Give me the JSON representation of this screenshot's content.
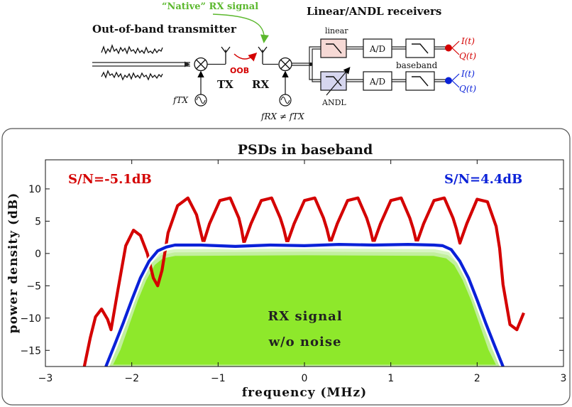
{
  "diagram": {
    "native_label": "“Native” RX signal",
    "title_receivers": "Linear/ANDL receivers",
    "title_transmitter": "Out-of-band transmitter",
    "oob_label": "OOB",
    "tx_label": "TX",
    "rx_label": "RX",
    "ftx_label": "fTX",
    "frx_neq_label": "fRX ≠ fTX",
    "linear_label": "linear",
    "andl_label": "ANDL",
    "ad_label_top": "A/D",
    "ad_label_bottom": "A/D",
    "baseband_label": "baseband",
    "i_top": "I(t)",
    "q_top": "Q(t)",
    "i_bottom": "I(t)",
    "q_bottom": "Q(t)",
    "colors": {
      "red": "#d40000",
      "blue": "#0a21d8",
      "green_label": "#5cb82e",
      "linear_box": "#f6d9d5",
      "andl_box": "#d6d6ef"
    }
  },
  "chart_data": {
    "type": "line",
    "title": "PSDs in baseband",
    "xlabel": "frequency (MHz)",
    "ylabel": "power density (dB)",
    "xlim": [
      -3,
      3
    ],
    "ylim": [
      -17.5,
      14.5
    ],
    "xticks": [
      -3,
      -2,
      -1,
      0,
      1,
      2,
      3
    ],
    "yticks": [
      10,
      5,
      0,
      -5,
      -10,
      -15
    ],
    "grid": false,
    "annotations": {
      "snr_linear": "S/N=-5.1dB",
      "snr_andl": "S/N=4.4dB",
      "rx_signal_line1": "RX signal",
      "rx_signal_line2": "w/o noise"
    },
    "series": [
      {
        "color": "#d40000",
        "x": [
          -2.55,
          -2.48,
          -2.42,
          -2.35,
          -2.28,
          -2.24,
          -2.16,
          -2.07,
          -1.98,
          -1.9,
          -1.82,
          -1.75,
          -1.7,
          -1.65,
          -1.58,
          -1.47,
          -1.35,
          -1.25,
          -1.21,
          -1.17,
          -1.1,
          -0.98,
          -0.86,
          -0.76,
          -0.73,
          -0.7,
          -0.62,
          -0.5,
          -0.38,
          -0.28,
          -0.24,
          -0.2,
          -0.12,
          0.0,
          0.12,
          0.22,
          0.26,
          0.3,
          0.38,
          0.5,
          0.62,
          0.72,
          0.76,
          0.8,
          0.88,
          1.0,
          1.12,
          1.22,
          1.26,
          1.3,
          1.38,
          1.5,
          1.62,
          1.72,
          1.76,
          1.8,
          1.88,
          2.0,
          2.12,
          2.22,
          2.26,
          2.3,
          2.38,
          2.46,
          2.54
        ],
        "y": [
          -17.5,
          -13.0,
          -9.8,
          -8.6,
          -10.2,
          -11.8,
          -5.6,
          1.2,
          3.6,
          2.8,
          0.0,
          -3.8,
          -5.0,
          -2.6,
          3.2,
          7.4,
          8.6,
          6.0,
          3.8,
          1.6,
          4.6,
          8.2,
          8.6,
          5.5,
          3.8,
          1.6,
          4.6,
          8.2,
          8.6,
          5.5,
          3.8,
          1.6,
          4.6,
          8.2,
          8.6,
          5.5,
          3.8,
          1.6,
          4.6,
          8.2,
          8.6,
          5.5,
          3.8,
          1.6,
          4.6,
          8.2,
          8.6,
          5.5,
          3.8,
          1.6,
          4.6,
          8.2,
          8.6,
          5.5,
          3.8,
          1.6,
          4.6,
          8.4,
          8.0,
          4.2,
          0.8,
          -4.8,
          -11.0,
          -11.8,
          -9.2
        ]
      },
      {
        "color": "#0a21d8",
        "x": [
          -2.3,
          -2.2,
          -2.1,
          -2.0,
          -1.9,
          -1.8,
          -1.7,
          -1.6,
          -1.5,
          -1.2,
          -0.8,
          -0.4,
          0.0,
          0.4,
          0.8,
          1.2,
          1.5,
          1.6,
          1.7,
          1.8,
          1.9,
          2.0,
          2.1,
          2.2,
          2.3
        ],
        "y": [
          -17.5,
          -14.2,
          -10.8,
          -7.2,
          -3.8,
          -1.2,
          0.4,
          1.0,
          1.3,
          1.3,
          1.1,
          1.3,
          1.2,
          1.4,
          1.3,
          1.4,
          1.3,
          1.2,
          0.6,
          -1.2,
          -3.8,
          -7.2,
          -10.8,
          -14.2,
          -17.5
        ]
      },
      {
        "color": "#8ee82b",
        "x": [
          -2.25,
          -2.15,
          -2.05,
          -1.95,
          -1.85,
          -1.75,
          -1.65,
          -1.5,
          0.0,
          1.5,
          1.65,
          1.75,
          1.85,
          1.95,
          2.05,
          2.15,
          2.25
        ],
        "y": [
          -17.5,
          -14.8,
          -11.0,
          -7.2,
          -4.0,
          -1.6,
          -0.5,
          -0.1,
          0.0,
          -0.1,
          -0.5,
          -1.6,
          -4.0,
          -7.2,
          -11.0,
          -14.8,
          -17.5
        ]
      }
    ]
  }
}
